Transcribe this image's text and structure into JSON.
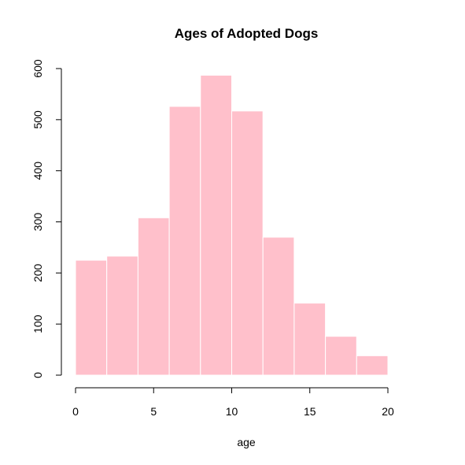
{
  "chart_data": {
    "type": "bar",
    "title": "Ages of Adopted Dogs",
    "xlabel": "age",
    "ylabel": "",
    "bins": [
      {
        "start": 0,
        "end": 2,
        "value": 225
      },
      {
        "start": 2,
        "end": 4,
        "value": 233
      },
      {
        "start": 4,
        "end": 6,
        "value": 308
      },
      {
        "start": 6,
        "end": 8,
        "value": 526
      },
      {
        "start": 8,
        "end": 10,
        "value": 587
      },
      {
        "start": 10,
        "end": 12,
        "value": 517
      },
      {
        "start": 12,
        "end": 14,
        "value": 270
      },
      {
        "start": 14,
        "end": 16,
        "value": 141
      },
      {
        "start": 16,
        "end": 18,
        "value": 76
      },
      {
        "start": 18,
        "end": 20,
        "value": 38
      }
    ],
    "xlim": [
      0,
      20
    ],
    "ylim": [
      0,
      600
    ],
    "x_ticks": [
      0,
      5,
      10,
      15,
      20
    ],
    "x_tick_labels": [
      "0",
      "5",
      "10",
      "15",
      "20"
    ],
    "y_ticks": [
      0,
      100,
      200,
      300,
      400,
      500,
      600
    ],
    "y_tick_labels": [
      "0",
      "100",
      "200",
      "300",
      "400",
      "500",
      "600"
    ],
    "bar_color": "#ffc0cb",
    "bar_border_color": "#ffffff",
    "grid": false,
    "legend": false
  }
}
